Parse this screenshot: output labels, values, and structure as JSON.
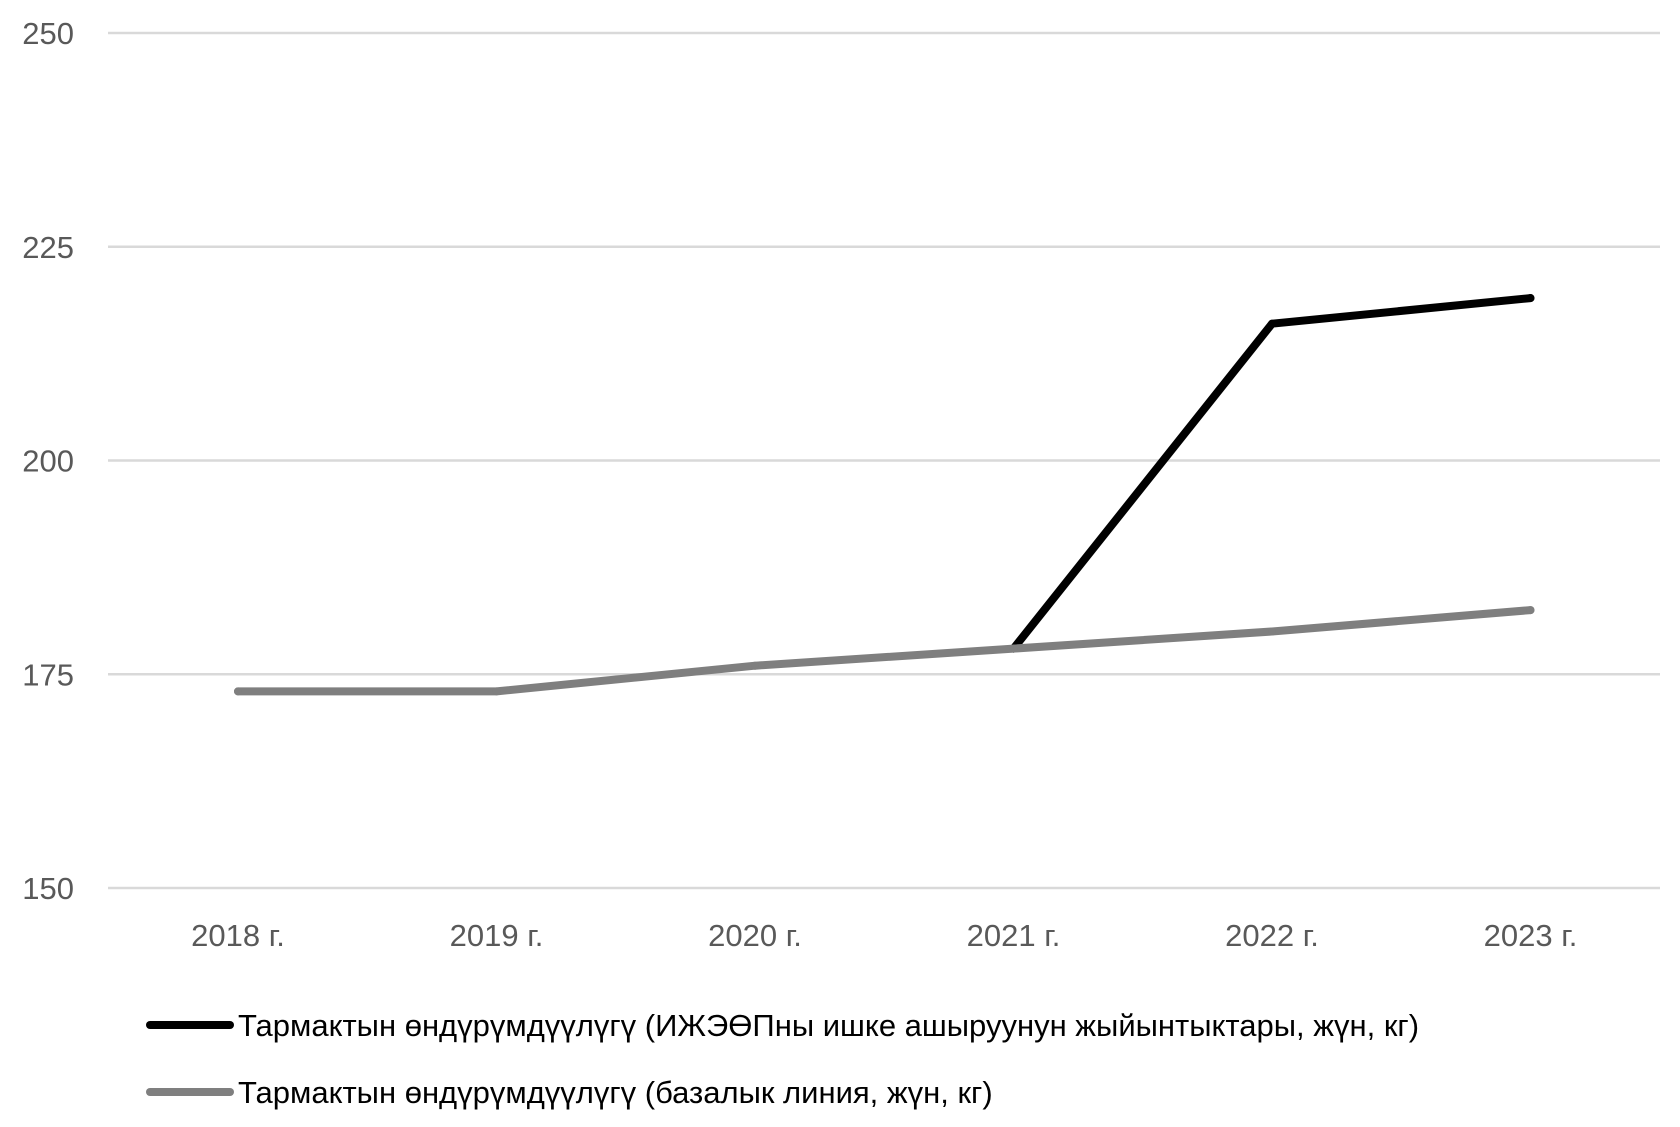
{
  "chart_data": {
    "type": "line",
    "title": "",
    "xlabel": "",
    "ylabel": "",
    "categories": [
      "2018 г.",
      "2019 г.",
      "2020 г.",
      "2021 г.",
      "2022 г.",
      "2023 г."
    ],
    "ylim": [
      150,
      250
    ],
    "yticks": [
      150,
      175,
      200,
      225,
      250
    ],
    "grid": true,
    "legend_position": "bottom",
    "series": [
      {
        "name": "Тармактын өндүрүмдүүлүгү (ИЖЭӨПны ишке ашыруунун жыйынтыктары, жүн, кг)",
        "color": "#000000",
        "values": [
          null,
          null,
          null,
          178,
          216,
          219
        ]
      },
      {
        "name": "Тармактын өндүрүмдүүлүгү (базалык линия, жүн, кг)",
        "color": "#7f7f7f",
        "values": [
          173,
          173,
          176,
          178,
          180,
          182.5
        ]
      }
    ]
  },
  "colors": {
    "gridline": "#d9d9d9",
    "tick_text": "#595959"
  }
}
